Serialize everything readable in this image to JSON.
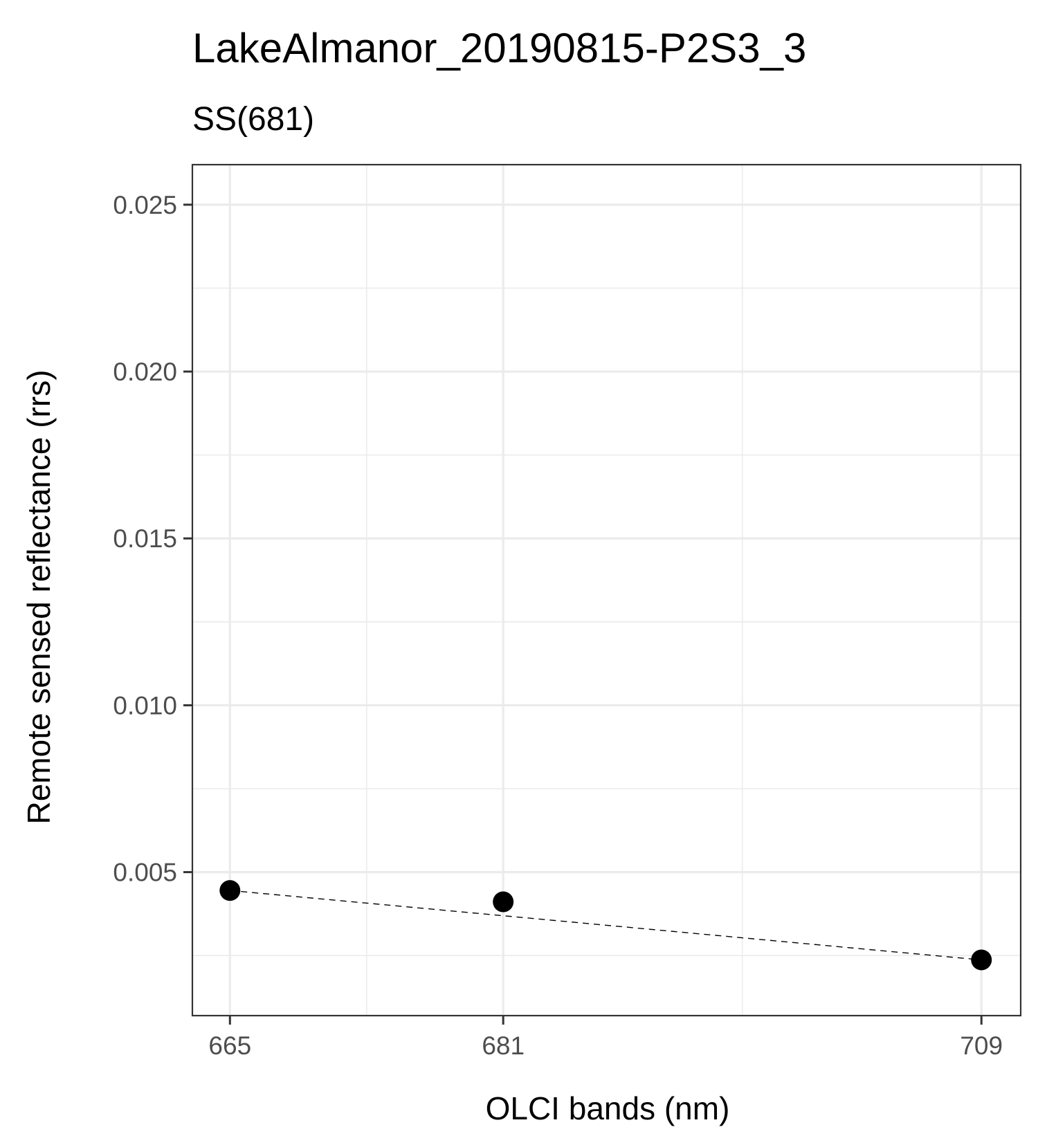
{
  "chart_data": {
    "type": "scatter",
    "title": "LakeAlmanor_20190815-P2S3_3",
    "subtitle": "SS(681)",
    "xlabel": "OLCI bands (nm)",
    "ylabel": "Remote sensed reflectance (rrs)",
    "x_categories": [
      "665",
      "681",
      "709"
    ],
    "x_values": [
      665,
      681,
      709
    ],
    "xlim": [
      662.8,
      711.3
    ],
    "ylim": [
      0.0007,
      0.0262
    ],
    "y_ticks": [
      0.005,
      0.01,
      0.015,
      0.02,
      0.025
    ],
    "y_tick_labels": [
      "0.005",
      "0.010",
      "0.015",
      "0.020",
      "0.025"
    ],
    "x_minor_gridlines": [
      673,
      695
    ],
    "y_minor_gridlines": [
      0.0025,
      0.0075,
      0.0125,
      0.0175,
      0.0225
    ],
    "points": [
      {
        "x": 665,
        "y": 0.00445
      },
      {
        "x": 681,
        "y": 0.00411
      },
      {
        "x": 709,
        "y": 0.00237
      }
    ],
    "baseline_line": {
      "style": "dashed",
      "from": {
        "x": 665,
        "y": 0.00445
      },
      "to": {
        "x": 709,
        "y": 0.00237
      }
    },
    "grid": true,
    "legend": "none",
    "colors": {
      "points": "#000000",
      "grid": "#ebebeb",
      "panel_border": "#333333",
      "tick_label": "#4d4d4d"
    }
  }
}
